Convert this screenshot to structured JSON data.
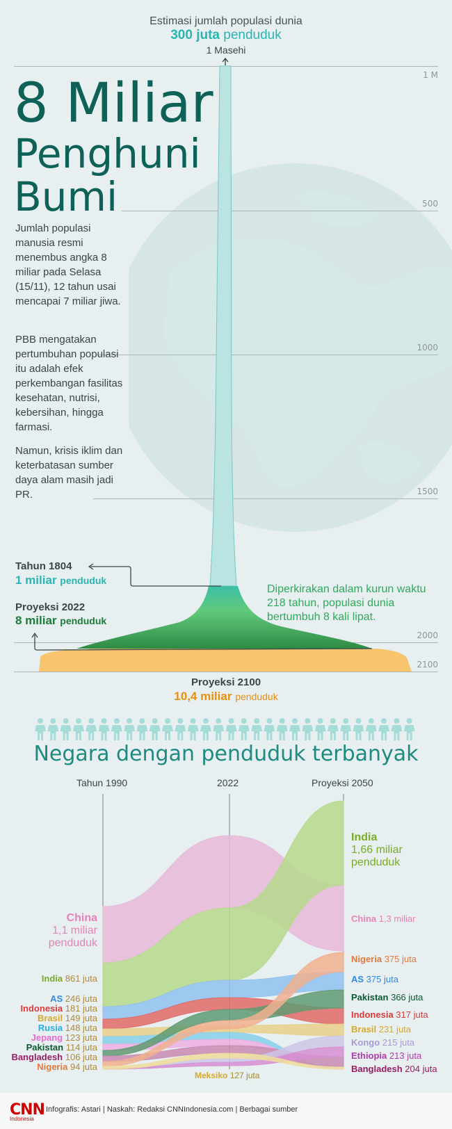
{
  "top": {
    "estimate_label": "Estimasi jumlah populasi dunia",
    "estimate_value": "300 juta",
    "estimate_unit": "penduduk",
    "era_label": "1 Masehi"
  },
  "title": {
    "line1": "8 Miliar",
    "line2": "Penghuni",
    "line3": "Bumi"
  },
  "paragraphs": [
    "Jumlah populasi manusia resmi menembus angka 8 miliar pada Selasa (15/11), 12 tahun usai mencapai 7 miliar jiwa.",
    "PBB mengatakan pertumbuhan populasi itu adalah efek perkembangan fasilitas kesehatan, nutrisi, kebersihan, hingga farmasi.",
    "Namun, krisis iklim dan keterbatasan sumber daya alam masih jadi PR."
  ],
  "year_axis": {
    "ticks": [
      "1 M",
      "500",
      "1000",
      "1500",
      "2000",
      "2100"
    ]
  },
  "annotations": {
    "y1804_label": "Tahun 1804",
    "y1804_value": "1 miliar",
    "y1804_unit": "penduduk",
    "y2022_label": "Proyeksi 2022",
    "y2022_value": "8 miliar",
    "y2022_unit": "penduduk",
    "note": "Diperkirakan dalam kurun waktu 218 tahun, populasi dunia bertumbuh 8 kali lipat.",
    "y2100_label": "Proyeksi 2100",
    "y2100_value": "10,4 miliar",
    "y2100_unit": "penduduk"
  },
  "colors": {
    "teal": "#2bb5b2",
    "green_dark": "#1d7a3a",
    "green": "#2eab5b",
    "orange": "#e8900e",
    "pale_teal": "#b9e4e1",
    "sand": "#f8c46e"
  },
  "section_title": "Negara dengan penduduk terbanyak",
  "columns": [
    "Tahun 1990",
    "2022",
    "Proyeksi 2050"
  ],
  "left_labels": [
    {
      "name": "China",
      "value": "1,1 miliar penduduk",
      "color": "#e483b7"
    },
    {
      "name": "India",
      "value": "861 juta",
      "color": "#7aac26"
    },
    {
      "name": "AS",
      "value": "246 juta",
      "color": "#2e8ae6"
    },
    {
      "name": "Indonesia",
      "value": "181 juta",
      "color": "#d83a3a"
    },
    {
      "name": "Brasil",
      "value": "149 juta",
      "color": "#d7a92a"
    },
    {
      "name": "Rusia",
      "value": "148 juta",
      "color": "#27b1e0"
    },
    {
      "name": "Jepang",
      "value": "123 juta",
      "color": "#e86ad3"
    },
    {
      "name": "Pakistan",
      "value": "114 juta",
      "color": "#0b5a2d"
    },
    {
      "name": "Bangladesh",
      "value": "106 juta",
      "color": "#9a1c64"
    },
    {
      "name": "Nigeria",
      "value": "94 juta",
      "color": "#e07a3f"
    }
  ],
  "right_labels": [
    {
      "name": "India",
      "value": "1,66 miliar penduduk",
      "color": "#7aac26"
    },
    {
      "name": "China",
      "value": "1,3 miliar",
      "color": "#e483b7"
    },
    {
      "name": "Nigeria",
      "value": "375 juta",
      "color": "#e07a3f"
    },
    {
      "name": "AS",
      "value": "375 juta",
      "color": "#2e8ae6"
    },
    {
      "name": "Pakistan",
      "value": "366 juta",
      "color": "#0b5a2d"
    },
    {
      "name": "Indonesia",
      "value": "317 juta",
      "color": "#d83a3a"
    },
    {
      "name": "Brasil",
      "value": "231 juta",
      "color": "#d7a92a"
    },
    {
      "name": "Kongo",
      "value": "215 juta",
      "color": "#a79ad4"
    },
    {
      "name": "Ethiopia",
      "value": "213 juta",
      "color": "#b23ab0"
    },
    {
      "name": "Bangladesh",
      "value": "204 juta",
      "color": "#9a1c64"
    }
  ],
  "bottom_label": {
    "name": "Meksiko",
    "value": "127 juta",
    "color": "#d7a92a"
  },
  "chart_data": [
    {
      "type": "area",
      "title": "8 Miliar Penghuni Bumi",
      "xlabel": "",
      "ylabel": "",
      "x": [
        "1 Masehi",
        "1804",
        "2022",
        "2100"
      ],
      "values": [
        "300 juta",
        "1 miliar",
        "8 miliar",
        "10,4 miliar"
      ],
      "values_millions": [
        300,
        1000,
        8000,
        10400
      ],
      "year_ticks": [
        "1 M",
        "500",
        "1000",
        "1500",
        "2000",
        "2100"
      ]
    },
    {
      "type": "line",
      "title": "Negara dengan penduduk terbanyak",
      "categories": [
        "Tahun 1990",
        "2022",
        "Proyeksi 2050"
      ],
      "series": [
        {
          "name": "China",
          "values": [
            1100,
            null,
            1300
          ]
        },
        {
          "name": "India",
          "values": [
            861,
            null,
            1660
          ]
        },
        {
          "name": "AS",
          "values": [
            246,
            null,
            375
          ]
        },
        {
          "name": "Indonesia",
          "values": [
            181,
            null,
            317
          ]
        },
        {
          "name": "Brasil",
          "values": [
            149,
            null,
            231
          ]
        },
        {
          "name": "Rusia",
          "values": [
            148,
            null,
            null
          ]
        },
        {
          "name": "Jepang",
          "values": [
            123,
            null,
            null
          ]
        },
        {
          "name": "Pakistan",
          "values": [
            114,
            null,
            366
          ]
        },
        {
          "name": "Bangladesh",
          "values": [
            106,
            null,
            204
          ]
        },
        {
          "name": "Nigeria",
          "values": [
            94,
            null,
            375
          ]
        },
        {
          "name": "Kongo",
          "values": [
            null,
            null,
            215
          ]
        },
        {
          "name": "Ethiopia",
          "values": [
            null,
            null,
            213
          ]
        },
        {
          "name": "Meksiko",
          "values": [
            null,
            127,
            null
          ]
        }
      ]
    }
  ],
  "footer": {
    "logo": "CNN",
    "logo_sub": "Indonesia",
    "credit": "Infografis: Astari | Naskah: Redaksi CNNIndonesia.com | Berbagai sumber"
  }
}
